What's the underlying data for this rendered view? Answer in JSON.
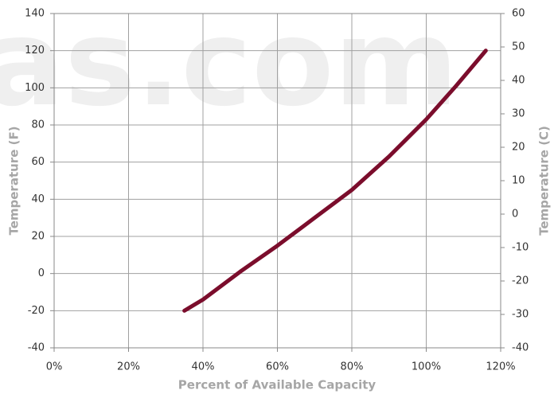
{
  "chart_data": {
    "type": "line",
    "watermark": "as.com",
    "xlabel": "Percent of Available Capacity",
    "ylabel": "Temperature (F)",
    "y2label": "Temperature  (C)",
    "x": [
      35,
      40,
      50,
      60,
      70,
      80,
      90,
      100,
      108,
      116
    ],
    "series": [
      {
        "name": "Temperature",
        "color": "#7b0d2c",
        "values": [
          -20,
          -14,
          1,
          15,
          30,
          45,
          63,
          83,
          101,
          120
        ]
      }
    ],
    "xlim": [
      0,
      120
    ],
    "xticks": [
      {
        "value": 0,
        "label": "0%"
      },
      {
        "value": 20,
        "label": "20%"
      },
      {
        "value": 40,
        "label": "40%"
      },
      {
        "value": 60,
        "label": "60%"
      },
      {
        "value": 80,
        "label": "80%"
      },
      {
        "value": 100,
        "label": "100%"
      },
      {
        "value": 120,
        "label": "120%"
      }
    ],
    "ylim": [
      -40,
      140
    ],
    "yticks": [
      -40,
      -20,
      0,
      20,
      40,
      60,
      80,
      100,
      120,
      140
    ],
    "y2lim": [
      -40,
      60
    ],
    "y2ticks": [
      -40,
      -30,
      -20,
      -10,
      0,
      10,
      20,
      30,
      40,
      50,
      60
    ],
    "grid": true
  }
}
